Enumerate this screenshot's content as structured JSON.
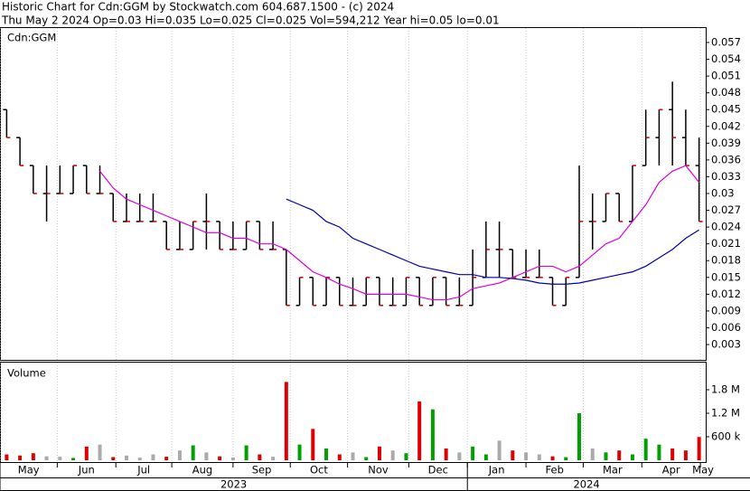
{
  "chart_data": [
    {
      "type": "ohlc",
      "title": "Historic Chart for Cdn:GGM by Stockwatch.com 604.687.1500 - (c) 2024",
      "subtitle": "Thu May  2 2024  Op=0.03  Hi=0.035  Lo=0.025  Cl=0.025  Vol=594,212  Year hi=0.05  lo=0.01",
      "label": "Cdn:GGM",
      "open": [
        0.045,
        0.04,
        0.035,
        0.03,
        0.03,
        0.03,
        0.035,
        0.03,
        0.03,
        0.025,
        0.025,
        0.025,
        0.025,
        0.02,
        0.02,
        0.025,
        0.025,
        0.02,
        0.02,
        0.025,
        0.02,
        0.02,
        0.01,
        0.015,
        0.01,
        0.015,
        0.01,
        0.01,
        0.015,
        0.01,
        0.01,
        0.015,
        0.01,
        0.015,
        0.01,
        0.01,
        0.015,
        0.02,
        0.02,
        0.015,
        0.015,
        0.015,
        0.01,
        0.015,
        0.025,
        0.025,
        0.03,
        0.025,
        0.035,
        0.04,
        0.045,
        0.04,
        0.035
      ],
      "high": [
        0.045,
        0.04,
        0.035,
        0.035,
        0.035,
        0.035,
        0.035,
        0.035,
        0.03,
        0.03,
        0.03,
        0.03,
        0.025,
        0.025,
        0.025,
        0.03,
        0.025,
        0.025,
        0.025,
        0.025,
        0.025,
        0.02,
        0.015,
        0.015,
        0.015,
        0.015,
        0.015,
        0.015,
        0.015,
        0.015,
        0.015,
        0.015,
        0.015,
        0.015,
        0.015,
        0.02,
        0.025,
        0.025,
        0.02,
        0.02,
        0.02,
        0.015,
        0.015,
        0.035,
        0.03,
        0.03,
        0.03,
        0.035,
        0.045,
        0.045,
        0.05,
        0.045,
        0.04
      ],
      "low": [
        0.04,
        0.035,
        0.03,
        0.025,
        0.03,
        0.03,
        0.03,
        0.03,
        0.025,
        0.025,
        0.025,
        0.025,
        0.02,
        0.02,
        0.02,
        0.02,
        0.02,
        0.02,
        0.02,
        0.02,
        0.02,
        0.01,
        0.01,
        0.01,
        0.01,
        0.01,
        0.01,
        0.01,
        0.01,
        0.01,
        0.01,
        0.01,
        0.01,
        0.01,
        0.01,
        0.01,
        0.015,
        0.015,
        0.015,
        0.015,
        0.015,
        0.01,
        0.01,
        0.015,
        0.02,
        0.025,
        0.025,
        0.025,
        0.035,
        0.035,
        0.035,
        0.035,
        0.025
      ],
      "close": [
        0.04,
        0.035,
        0.03,
        0.03,
        0.03,
        0.035,
        0.03,
        0.03,
        0.025,
        0.025,
        0.025,
        0.025,
        0.02,
        0.02,
        0.025,
        0.025,
        0.02,
        0.02,
        0.025,
        0.02,
        0.02,
        0.01,
        0.015,
        0.01,
        0.015,
        0.01,
        0.01,
        0.015,
        0.01,
        0.01,
        0.015,
        0.01,
        0.015,
        0.01,
        0.01,
        0.015,
        0.02,
        0.02,
        0.015,
        0.015,
        0.015,
        0.01,
        0.015,
        0.025,
        0.025,
        0.03,
        0.025,
        0.035,
        0.04,
        0.045,
        0.04,
        0.035,
        0.025
      ],
      "bar_color": "#000000",
      "close_color": "#cc0000",
      "series": [
        {
          "color": "#dd00dd",
          "values": [
            null,
            null,
            null,
            null,
            null,
            null,
            null,
            0.034,
            0.031,
            0.029,
            0.028,
            0.027,
            0.026,
            0.025,
            0.024,
            0.023,
            0.023,
            0.022,
            0.022,
            0.021,
            0.021,
            0.02,
            0.018,
            0.016,
            0.015,
            0.0138,
            0.013,
            0.012,
            0.012,
            0.012,
            0.012,
            0.0115,
            0.011,
            0.011,
            0.0115,
            0.013,
            0.0135,
            0.014,
            0.015,
            0.016,
            0.017,
            0.017,
            0.016,
            0.017,
            0.019,
            0.021,
            0.022,
            0.025,
            0.028,
            0.032,
            0.034,
            0.035,
            0.032
          ]
        },
        {
          "color": "#0000aa",
          "values": [
            null,
            null,
            null,
            null,
            null,
            null,
            null,
            null,
            null,
            null,
            null,
            null,
            null,
            null,
            null,
            null,
            null,
            null,
            null,
            null,
            null,
            0.029,
            0.028,
            0.027,
            0.025,
            0.024,
            0.022,
            0.021,
            0.02,
            0.019,
            0.018,
            0.017,
            0.0165,
            0.016,
            0.0155,
            0.0155,
            0.015,
            0.015,
            0.0148,
            0.0145,
            0.014,
            0.0138,
            0.0138,
            0.014,
            0.0145,
            0.015,
            0.0155,
            0.016,
            0.017,
            0.0185,
            0.02,
            0.022,
            0.0235
          ]
        }
      ],
      "xlim": [
        0,
        53
      ],
      "xticks": [
        {
          "value": 0,
          "label": "May"
        },
        {
          "value": 4.3,
          "label": "Jun"
        },
        {
          "value": 8.7,
          "label": "Jul"
        },
        {
          "value": 12.9,
          "label": "Aug"
        },
        {
          "value": 17.5,
          "label": "Sep"
        },
        {
          "value": 21.8,
          "label": "Oct"
        },
        {
          "value": 26.1,
          "label": "Nov"
        },
        {
          "value": 30.7,
          "label": "Dec"
        },
        {
          "value": 35.1,
          "label": "Jan"
        },
        {
          "value": 39.5,
          "label": "Feb"
        },
        {
          "value": 43.8,
          "label": "Mar"
        },
        {
          "value": 48.2,
          "label": "Apr"
        },
        {
          "value": 52.6,
          "label": "May"
        }
      ],
      "year_spans": [
        {
          "label": "2023",
          "start": 0,
          "end": 35.1
        },
        {
          "label": "2024",
          "start": 35.1,
          "end": 53
        }
      ],
      "ylim": [
        0,
        0.0585
      ],
      "yticks": [
        0.003,
        0.006,
        0.009,
        0.012,
        0.015,
        0.018,
        0.021,
        0.024,
        0.027,
        0.03,
        0.033,
        0.036,
        0.039,
        0.042,
        0.045,
        0.048,
        0.051,
        0.054,
        0.057
      ],
      "grid": true
    },
    {
      "type": "bar",
      "label": "Volume",
      "values": [
        150000,
        120000,
        180000,
        100000,
        90000,
        60000,
        350000,
        400000,
        80000,
        120000,
        70000,
        150000,
        90000,
        250000,
        380000,
        200000,
        100000,
        70000,
        380000,
        150000,
        90000,
        2000000,
        400000,
        800000,
        300000,
        150000,
        200000,
        80000,
        350000,
        250000,
        180000,
        1500000,
        1300000,
        300000,
        200000,
        350000,
        150000,
        500000,
        250000,
        200000,
        150000,
        100000,
        80000,
        1200000,
        300000,
        200000,
        250000,
        150000,
        550000,
        400000,
        300000,
        250000,
        594212
      ],
      "up_color": "#00a000",
      "down_color": "#dd0000",
      "flat_color": "#aaaaaa",
      "ylim": [
        0,
        2470000
      ],
      "yticks": [
        {
          "value": 600000,
          "label": "600 k"
        },
        {
          "value": 1200000,
          "label": "1.2 M"
        },
        {
          "value": 1800000,
          "label": "1.8 M"
        }
      ]
    }
  ]
}
